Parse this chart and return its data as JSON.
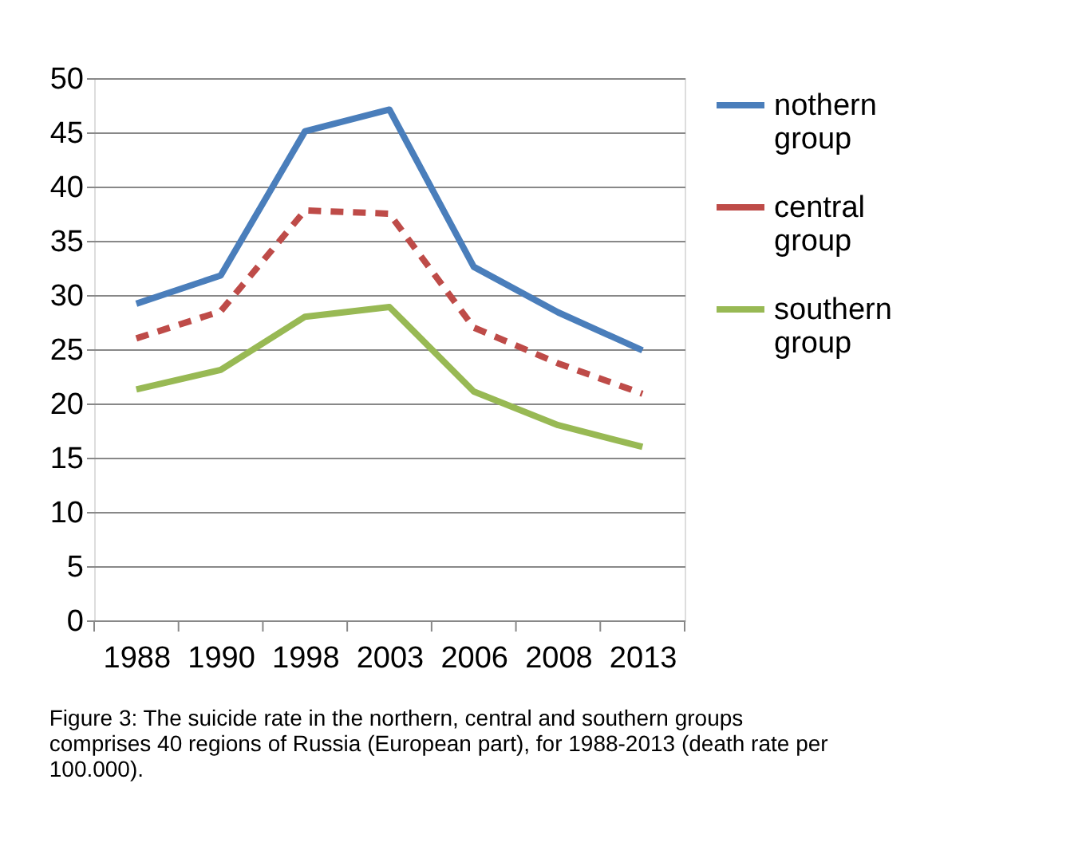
{
  "chart_data": {
    "type": "line",
    "categories": [
      "1988",
      "1990",
      "1998",
      "2003",
      "2006",
      "2008",
      "2013"
    ],
    "series": [
      {
        "name": "nothern group",
        "color": "#4a7ebb",
        "line_style": "solid",
        "values": [
          29.2,
          31.8,
          45.1,
          47.1,
          32.6,
          28.4,
          24.9
        ]
      },
      {
        "name": "central group",
        "color": "#be4b48",
        "line_style": "dashed",
        "values": [
          26.0,
          28.5,
          37.8,
          37.5,
          27.0,
          23.7,
          20.9
        ]
      },
      {
        "name": "southern group",
        "color": "#98b954",
        "line_style": "solid",
        "values": [
          21.3,
          23.1,
          28.0,
          28.9,
          21.1,
          18.0,
          16.0
        ]
      }
    ],
    "ylim": [
      0,
      50
    ],
    "yticks": [
      0,
      5,
      10,
      15,
      20,
      25,
      30,
      35,
      40,
      45,
      50
    ],
    "grid": "y",
    "legend": "right",
    "marker": "none",
    "annotations": [
      "Figure 3: The suicide rate in the northern, central and southern groups comprises 40 regions of Russia (European part), for 1988-2013 (death rate per 100.000)."
    ]
  }
}
